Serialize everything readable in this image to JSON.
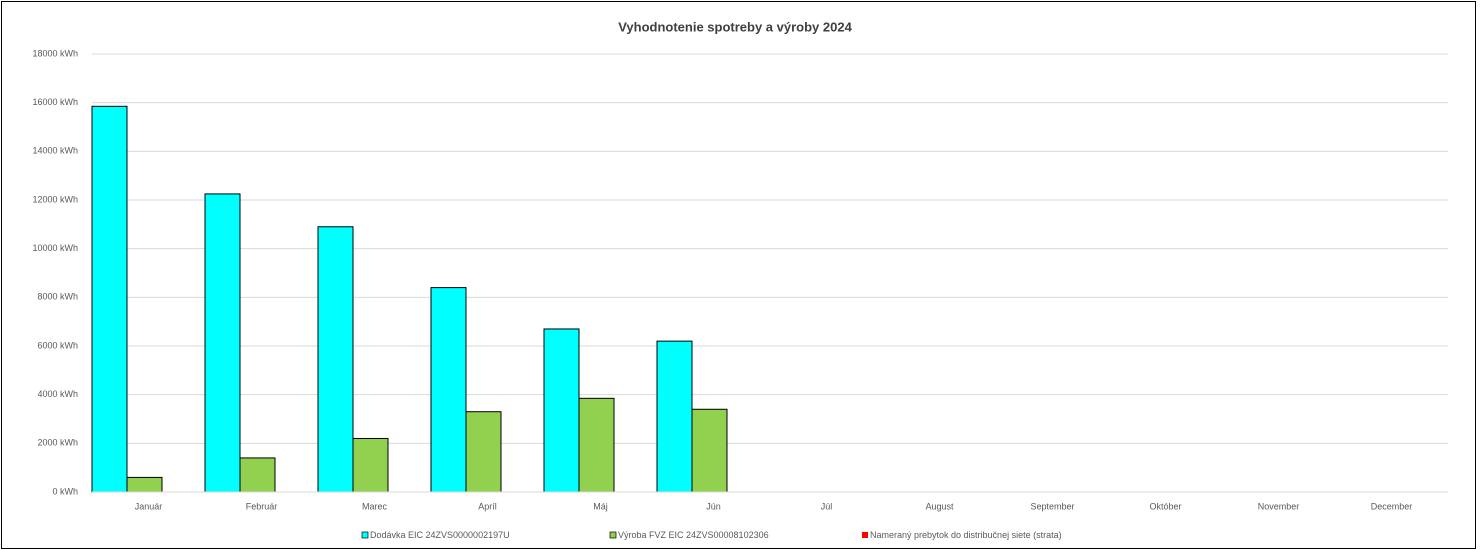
{
  "chart_data": {
    "type": "bar",
    "title": "Vyhodnotenie spotreby a výroby 2024",
    "categories": [
      "Január",
      "Február",
      "Marec",
      "Apríl",
      "Máj",
      "Jún",
      "Júl",
      "August",
      "September",
      "Október",
      "November",
      "December"
    ],
    "series": [
      {
        "name": "Dodávka  EIC 24ZVS0000002197U",
        "color": "#00ffff",
        "values": [
          15850,
          12250,
          10900,
          8400,
          6700,
          6200,
          null,
          null,
          null,
          null,
          null,
          null
        ]
      },
      {
        "name": "Výroba FVZ EIC 24ZVS00008102306",
        "color": "#92d050",
        "values": [
          600,
          1400,
          2200,
          3300,
          3850,
          3400,
          null,
          null,
          null,
          null,
          null,
          null
        ]
      },
      {
        "name": "Nameraný prebytok do distribučnej siete (strata)",
        "color": "#ff0000",
        "values": [
          0,
          0,
          0,
          0,
          0,
          0,
          null,
          null,
          null,
          null,
          null,
          null
        ]
      }
    ],
    "ylim": [
      0,
      18000
    ],
    "yticks": [
      {
        "value": 0,
        "label": "0 kWh"
      },
      {
        "value": 2000,
        "label": "2000 kWh"
      },
      {
        "value": 4000,
        "label": "4000 kWh"
      },
      {
        "value": 6000,
        "label": "6000 kWh"
      },
      {
        "value": 8000,
        "label": "8000 kWh"
      },
      {
        "value": 10000,
        "label": "10000 kWh"
      },
      {
        "value": 12000,
        "label": "12000 kWh"
      },
      {
        "value": 14000,
        "label": "14000 kWh"
      },
      {
        "value": 16000,
        "label": "16000 kWh"
      },
      {
        "value": 18000,
        "label": "18000 kWh"
      }
    ],
    "grid": true,
    "legend": "bottom"
  }
}
